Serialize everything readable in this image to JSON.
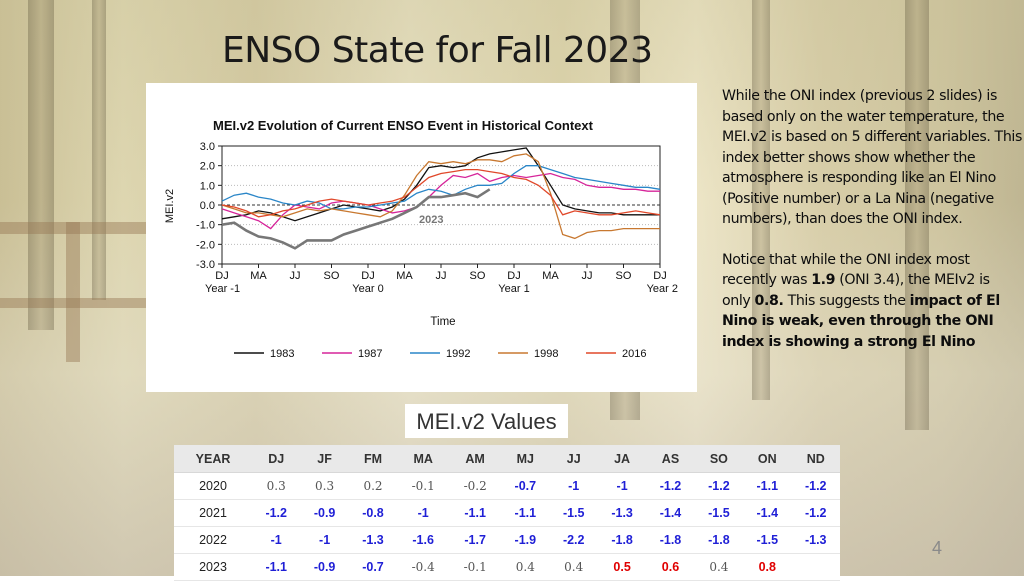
{
  "slide": {
    "title": "ENSO State for Fall 2023",
    "page_number": "4"
  },
  "side_text": {
    "paragraph1": "While the ONI index (previous 2 slides) is based only on the water temperature, the MEI.v2 is based on 5 different variables. This index better shows show whether the atmosphere is responding like an El Nino (Positive number) or a La Nina (negative numbers), than  does the ONI index.",
    "p2_part1": "Notice that while the ONI index most recently was ",
    "p2_oni_value": "1.9",
    "p2_part2": " (ONI 3.4), the MEIv2 is only ",
    "p2_mei_value": "0.8.",
    "p2_part3": "  This suggests the ",
    "p2_bold_end": "impact of El Nino is weak, even through the ONI index is showing a strong El Nino"
  },
  "chart_data": {
    "type": "line",
    "title": "MEI.v2 Evolution of Current ENSO Event in Historical Context",
    "xlabel": "Time",
    "ylabel": "MEI.v2",
    "ylim": [
      -3.0,
      3.0
    ],
    "y_ticks": [
      "3.0",
      "2.0",
      "1.0",
      "0.0",
      "-1.0",
      "-2.0",
      "-3.0"
    ],
    "y_tick_values": [
      3,
      2,
      1,
      0,
      -1,
      -2,
      -3
    ],
    "x_ticks": [
      "DJ",
      "MA",
      "JJ",
      "SO",
      "DJ",
      "MA",
      "JJ",
      "SO",
      "DJ",
      "MA",
      "JJ",
      "SO",
      "DJ"
    ],
    "x_group_labels": [
      "Year -1",
      "Year 0",
      "Year 1",
      "Year 2"
    ],
    "annotation": "2023",
    "series": [
      {
        "name": "1983",
        "color": "#111111",
        "values": [
          -0.7,
          -0.6,
          -0.5,
          -0.3,
          -0.4,
          -0.6,
          -0.8,
          -0.6,
          -0.4,
          -0.2,
          0.0,
          -0.1,
          -0.2,
          -0.3,
          -0.1,
          0.3,
          1.0,
          1.9,
          2.0,
          1.9,
          2.0,
          2.4,
          2.6,
          2.7,
          2.8,
          2.9,
          2.0,
          1.0,
          0.0,
          -0.2,
          -0.3,
          -0.4,
          -0.4,
          -0.5,
          -0.5,
          -0.5,
          -0.5
        ]
      },
      {
        "name": "1987",
        "color": "#d6259a",
        "values": [
          -0.2,
          -0.4,
          -0.6,
          -0.8,
          -1.2,
          -0.5,
          0.0,
          -0.1,
          -0.2,
          0.1,
          0.2,
          0.1,
          0.0,
          -0.2,
          -0.4,
          -0.3,
          -0.1,
          0.4,
          1.0,
          1.5,
          1.4,
          1.6,
          1.2,
          1.4,
          1.5,
          1.4,
          1.5,
          1.6,
          1.4,
          1.3,
          1.0,
          0.9,
          0.9,
          0.8,
          0.8,
          0.7,
          0.7
        ]
      },
      {
        "name": "1992",
        "color": "#2a86c8",
        "values": [
          0.2,
          0.5,
          0.6,
          0.4,
          0.3,
          0.1,
          0.0,
          0.2,
          0.1,
          -0.2,
          -0.2,
          -0.1,
          -0.1,
          0.0,
          0.1,
          0.2,
          0.6,
          0.8,
          0.7,
          0.5,
          0.8,
          1.0,
          1.0,
          1.1,
          1.6,
          2.0,
          2.0,
          1.8,
          1.6,
          1.4,
          1.3,
          1.2,
          1.1,
          1.0,
          0.9,
          0.9,
          0.8
        ]
      },
      {
        "name": "1998",
        "color": "#c87830",
        "values": [
          0.0,
          -0.2,
          -0.4,
          -0.4,
          -0.5,
          -0.6,
          -0.4,
          -0.2,
          -0.3,
          -0.2,
          -0.3,
          -0.4,
          -0.5,
          -0.6,
          -0.3,
          0.5,
          1.5,
          2.2,
          2.1,
          2.2,
          2.1,
          2.3,
          2.3,
          2.2,
          2.5,
          2.6,
          2.2,
          0.6,
          -1.5,
          -1.7,
          -1.4,
          -1.3,
          -1.3,
          -1.2,
          -1.2,
          -1.2,
          -1.2
        ]
      },
      {
        "name": "2016",
        "color": "#e0482a",
        "values": [
          0.0,
          -0.1,
          -0.3,
          -0.6,
          -0.5,
          -0.3,
          -0.2,
          0.0,
          0.2,
          0.3,
          0.2,
          0.1,
          0.0,
          0.1,
          0.2,
          0.4,
          0.9,
          1.4,
          1.6,
          1.7,
          1.8,
          1.8,
          1.7,
          1.6,
          1.4,
          1.3,
          1.0,
          0.5,
          -0.5,
          -0.3,
          -0.4,
          -0.5,
          -0.5,
          -0.4,
          -0.3,
          -0.4,
          -0.5
        ]
      },
      {
        "name": "2023",
        "color": "#777777",
        "legend": false,
        "values": [
          -1.0,
          -0.9,
          -1.3,
          -1.6,
          -1.7,
          -1.9,
          -2.2,
          -1.8,
          -1.8,
          -1.8,
          -1.5,
          -1.3,
          -1.1,
          -0.9,
          -0.7,
          -0.4,
          -0.1,
          0.4,
          0.4,
          0.5,
          0.6,
          0.4,
          0.8
        ]
      }
    ]
  },
  "table": {
    "heading": "MEI.v2 Values",
    "headers": [
      "YEAR",
      "DJ",
      "JF",
      "FM",
      "MA",
      "AM",
      "MJ",
      "JJ",
      "JA",
      "AS",
      "SO",
      "ON",
      "ND"
    ],
    "rows": [
      [
        "2020",
        "0.3",
        "0.3",
        "0.2",
        "-0.1",
        "-0.2",
        "-0.7",
        "-1",
        "-1",
        "-1.2",
        "-1.2",
        "-1.1",
        "-1.2"
      ],
      [
        "2021",
        "-1.2",
        "-0.9",
        "-0.8",
        "-1",
        "-1.1",
        "-1.1",
        "-1.5",
        "-1.3",
        "-1.4",
        "-1.5",
        "-1.4",
        "-1.2"
      ],
      [
        "2022",
        "-1",
        "-1",
        "-1.3",
        "-1.6",
        "-1.7",
        "-1.9",
        "-2.2",
        "-1.8",
        "-1.8",
        "-1.8",
        "-1.5",
        "-1.3"
      ],
      [
        "2023",
        "-1.1",
        "-0.9",
        "-0.7",
        "-0.4",
        "-0.1",
        "0.4",
        "0.4",
        "0.5",
        "0.6",
        "0.4",
        "0.8",
        ""
      ]
    ],
    "styles": [
      [
        "year",
        "plain",
        "plain",
        "plain",
        "plain",
        "plain",
        "neg",
        "neg",
        "neg",
        "neg",
        "neg",
        "neg",
        "neg"
      ],
      [
        "year",
        "neg",
        "neg",
        "neg",
        "neg",
        "neg",
        "neg",
        "neg",
        "neg",
        "neg",
        "neg",
        "neg",
        "neg"
      ],
      [
        "year",
        "neg",
        "neg",
        "neg",
        "neg",
        "neg",
        "neg",
        "neg",
        "neg",
        "neg",
        "neg",
        "neg",
        "neg"
      ],
      [
        "year",
        "neg",
        "neg",
        "neg",
        "plain",
        "plain",
        "plain",
        "plain",
        "pos-red",
        "pos-red",
        "plain",
        "pos-red",
        "plain"
      ]
    ]
  }
}
